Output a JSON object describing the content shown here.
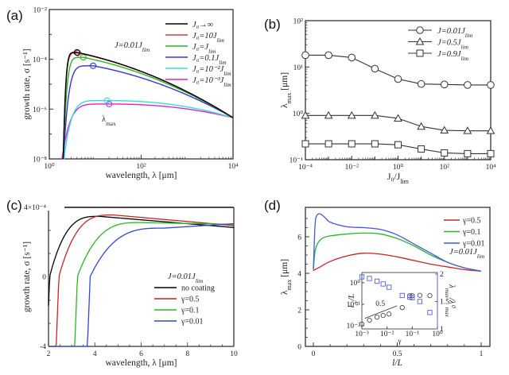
{
  "figure": {
    "panels": [
      "(a)",
      "(b)",
      "(c)",
      "(d)"
    ]
  },
  "chart_data": [
    {
      "id": "a",
      "label": "(a)",
      "type": "line",
      "xscale": "log",
      "yscale": "log",
      "xlim": [
        1,
        10000
      ],
      "ylim": [
        1e-08,
        0.01
      ],
      "xticks": [
        {
          "v": 1,
          "t": "10⁰"
        },
        {
          "v": 100,
          "t": "10²"
        },
        {
          "v": 10000,
          "t": "10⁴"
        }
      ],
      "yticks": [
        {
          "v": 0.01,
          "t": "10⁻²"
        },
        {
          "v": 0.0001,
          "t": "10⁻⁴"
        },
        {
          "v": 1e-06,
          "t": "10⁻⁶"
        },
        {
          "v": 1e-08,
          "t": "10⁻⁸"
        }
      ],
      "xlabel": "wavelength, λ [μm]",
      "ylabel": "growth rate, σ [s⁻¹]",
      "annotation": "J=0.01J_lim",
      "annotation2": "λ_max",
      "legend_position": "top-right",
      "series": [
        {
          "name": "J₀→∞",
          "color": "#000000",
          "cutoff": 2.0,
          "peak_x": 4.0,
          "peak_y": 0.00019,
          "end_y": 4.5e-07
        },
        {
          "name": "J₀=10J_lim",
          "color": "#d04040",
          "cutoff": 2.0,
          "peak_x": 4.2,
          "peak_y": 0.00018,
          "end_y": 4.5e-07
        },
        {
          "name": "J₀=J_lim",
          "color": "#22bb22",
          "cutoff": 2.0,
          "peak_x": 5.5,
          "peak_y": 0.00012,
          "end_y": 4.5e-07
        },
        {
          "name": "J₀=0.1J_lim",
          "color": "#3333dd",
          "cutoff": 2.0,
          "peak_x": 9.0,
          "peak_y": 5.5e-05,
          "end_y": 4.5e-07
        },
        {
          "name": "J₀=10⁻²J_lim",
          "color": "#33dddd",
          "cutoff": 2.0,
          "peak_x": 18.0,
          "peak_y": 2.2e-06,
          "end_y": 4.5e-07
        },
        {
          "name": "J₀=10⁻³J_lim",
          "color": "#dd22dd",
          "cutoff": 1.8,
          "peak_x": 20.0,
          "peak_y": 1.6e-06,
          "end_y": 4.5e-07
        }
      ]
    },
    {
      "id": "b",
      "label": "(b)",
      "type": "line",
      "xscale": "log",
      "yscale": "log",
      "xlim": [
        0.0001,
        10000
      ],
      "ylim": [
        0.1,
        100
      ],
      "xticks": [
        {
          "v": 0.0001,
          "t": "10⁻⁴"
        },
        {
          "v": 0.01,
          "t": "10⁻²"
        },
        {
          "v": 1,
          "t": "10⁰"
        },
        {
          "v": 100,
          "t": "10²"
        },
        {
          "v": 10000,
          "t": "10⁴"
        }
      ],
      "yticks": [
        {
          "v": 100,
          "t": "10²"
        },
        {
          "v": 10,
          "t": "10¹"
        },
        {
          "v": 1,
          "t": "10⁰"
        },
        {
          "v": 0.1,
          "t": "10⁻¹"
        }
      ],
      "xlabel": "J₀/J_lim",
      "ylabel": "λ_max [μm]",
      "legend_position": "top-right",
      "x": [
        0.0001,
        0.001,
        0.01,
        0.1,
        1,
        10,
        100,
        1000,
        10000
      ],
      "series": [
        {
          "name": "J=0.01J_lim",
          "marker": "circle",
          "values": [
            18,
            18,
            16,
            9.2,
            5.5,
            4.3,
            4.2,
            4.1,
            4.1
          ]
        },
        {
          "name": "J=0.5J_lim",
          "marker": "triangle",
          "values": [
            0.9,
            0.9,
            0.9,
            0.9,
            0.78,
            0.52,
            0.43,
            0.42,
            0.42
          ]
        },
        {
          "name": "J=0.9J_lim",
          "marker": "square",
          "values": [
            0.22,
            0.22,
            0.22,
            0.22,
            0.21,
            0.17,
            0.14,
            0.135,
            0.135
          ]
        }
      ]
    },
    {
      "id": "c",
      "label": "(c)",
      "type": "line",
      "xscale": "linear",
      "yscale": "symlog",
      "xlim": [
        2,
        10
      ],
      "ylim": [
        -4,
        0.0004
      ],
      "xticks": [
        {
          "v": 2,
          "t": "2"
        },
        {
          "v": 4,
          "t": "4"
        },
        {
          "v": 6,
          "t": "6"
        },
        {
          "v": 8,
          "t": "8"
        },
        {
          "v": 10,
          "t": "10"
        }
      ],
      "yticks": [
        {
          "v": "top",
          "t": "4×10⁻⁴"
        },
        {
          "v": 0,
          "t": "0"
        },
        {
          "v": -4,
          "t": "-4"
        }
      ],
      "xlabel": "wavelength, λ [μm]",
      "ylabel": "growth rate, σ [s⁻¹]",
      "legend_title": "J=0.01J_lim",
      "legend_position": "center-right",
      "series": [
        {
          "name": "no coating",
          "color": "#000000",
          "zero_x": 2.05,
          "peak_x": 4.2,
          "peak_frac": 0.87,
          "end_frac": 0.77
        },
        {
          "name": "γ=0.5",
          "color": "#cc2222",
          "zero_x": 2.45,
          "peak_x": 4.8,
          "peak_frac": 0.89,
          "end_frac": 0.8
        },
        {
          "name": "γ=0.1",
          "color": "#22bb22",
          "zero_x": 3.25,
          "peak_x": 6.0,
          "peak_frac": 0.78,
          "end_frac": 0.82
        },
        {
          "name": "γ=0.01",
          "color": "#3344dd",
          "zero_x": 3.8,
          "peak_x": 7.0,
          "peak_frac": 0.7,
          "end_frac": 0.83
        }
      ]
    },
    {
      "id": "d",
      "label": "(d)",
      "type": "line",
      "xscale": "linear",
      "yscale": "linear",
      "xlim": [
        -0.03,
        1.03
      ],
      "ylim": [
        0,
        7.5
      ],
      "xticks": [
        {
          "v": 0,
          "t": "0"
        },
        {
          "v": 0.5,
          "t": "0.5"
        },
        {
          "v": 1,
          "t": "1"
        }
      ],
      "yticks": [
        {
          "v": 0,
          "t": "0"
        },
        {
          "v": 2,
          "t": "2"
        },
        {
          "v": 4,
          "t": "4"
        },
        {
          "v": 6,
          "t": "6"
        }
      ],
      "xlabel": "l/L",
      "ylabel": "λ_max [μm]",
      "annotation": "J=0.01J_lim",
      "legend_position": "top-right",
      "series": [
        {
          "name": "γ=0.5",
          "color": "#cc2222",
          "x": [
            0,
            0.05,
            0.1,
            0.2,
            0.3,
            0.4,
            0.5,
            0.6,
            0.7,
            0.8,
            0.9,
            1.0
          ],
          "values": [
            4.15,
            4.4,
            4.65,
            4.95,
            5.1,
            5.05,
            4.9,
            4.7,
            4.5,
            4.35,
            4.2,
            4.12
          ]
        },
        {
          "name": "γ=0.1",
          "color": "#22bb22",
          "x": [
            0,
            0.01,
            0.03,
            0.06,
            0.1,
            0.2,
            0.3,
            0.4,
            0.5,
            0.6,
            0.7,
            0.8,
            0.9,
            1.0
          ],
          "values": [
            4.2,
            5.2,
            5.7,
            5.95,
            6.05,
            6.15,
            6.2,
            6.15,
            5.9,
            5.5,
            5.0,
            4.6,
            4.3,
            4.12
          ]
        },
        {
          "name": "γ=0.01",
          "color": "#4455ee",
          "x": [
            0,
            0.01,
            0.02,
            0.04,
            0.07,
            0.1,
            0.2,
            0.3,
            0.4,
            0.5,
            0.6,
            0.7,
            0.8,
            0.9,
            1.0
          ],
          "values": [
            4.2,
            6.6,
            7.15,
            7.25,
            7.05,
            6.8,
            6.55,
            6.5,
            6.4,
            6.1,
            5.6,
            5.1,
            4.6,
            4.3,
            4.12
          ]
        }
      ],
      "inset": {
        "xlabel": "γ",
        "ylabel_left": "l_cr/L",
        "ylabel_right": "λ_max/λ⁰_max",
        "xlim": [
          0.001,
          1
        ],
        "ylim_left": [
          0.01,
          3
        ],
        "ylim_right": [
          1,
          2
        ],
        "xticks": [
          {
            "v": 0.001,
            "t": "10⁻³"
          },
          {
            "v": 0.01,
            "t": "10⁻²"
          },
          {
            "v": 0.1,
            "t": "10⁻¹"
          },
          {
            "v": 1,
            "t": "10⁰"
          }
        ],
        "yticks_left": [
          {
            "v": 1,
            "t": "10⁰"
          },
          {
            "v": 0.1,
            "t": "10⁻¹"
          },
          {
            "v": 0.01,
            "t": "10⁻²"
          }
        ],
        "yticks_right": [
          {
            "v": 2,
            "t": "2"
          },
          {
            "v": 1.5,
            "t": "1.5"
          },
          {
            "v": 1,
            "t": "1"
          }
        ],
        "slope_label": "0.5",
        "circles": {
          "x": [
            0.001,
            0.002,
            0.004,
            0.007,
            0.012,
            0.04,
            0.08,
            0.1,
            0.2,
            0.5
          ],
          "y": [
            0.012,
            0.018,
            0.025,
            0.03,
            0.035,
            0.07,
            0.25,
            0.25,
            0.26,
            0.25
          ]
        },
        "squares": {
          "x": [
            0.001,
            0.002,
            0.004,
            0.007,
            0.012,
            0.04,
            0.08,
            0.1,
            0.2,
            0.5
          ],
          "y": [
            1.95,
            1.92,
            1.87,
            1.82,
            1.76,
            1.61,
            1.58,
            1.57,
            1.5,
            1.3
          ]
        }
      }
    }
  ]
}
